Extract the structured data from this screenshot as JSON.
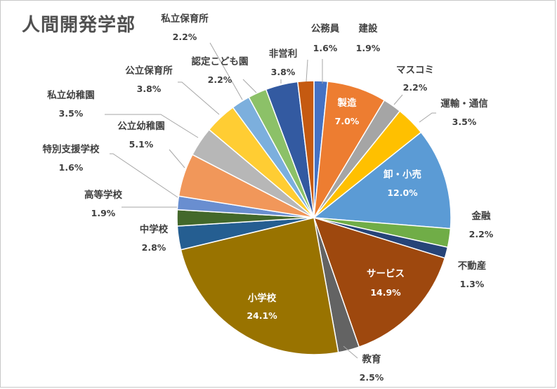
{
  "chart_data": {
    "type": "pie",
    "title": "人間開発学部",
    "start_angle_deg": 0,
    "direction": "clockwise",
    "slices": [
      {
        "label": "公務員",
        "value": 1.6,
        "display": "1.6%",
        "color": "#4472c4",
        "label_inside": false
      },
      {
        "label": "製造",
        "value": 7.0,
        "display": "7.0%",
        "color": "#ed7d31",
        "label_inside": true
      },
      {
        "label": "マスコミ",
        "value": 2.2,
        "display": "2.2%",
        "color": "#a5a5a5",
        "label_inside": false
      },
      {
        "label": "運輸・通信",
        "value": 3.5,
        "display": "3.5%",
        "color": "#ffc000",
        "label_inside": false
      },
      {
        "label": "卸・小売",
        "value": 12.0,
        "display": "12.0%",
        "color": "#5b9bd5",
        "label_inside": true
      },
      {
        "label": "金融",
        "value": 2.2,
        "display": "2.2%",
        "color": "#70ad47",
        "label_inside": false
      },
      {
        "label": "不動産",
        "value": 1.3,
        "display": "1.3%",
        "color": "#264478",
        "label_inside": false
      },
      {
        "label": "サービス",
        "value": 14.9,
        "display": "14.9%",
        "color": "#9e480e",
        "label_inside": true
      },
      {
        "label": "教育",
        "value": 2.5,
        "display": "2.5%",
        "color": "#636363",
        "label_inside": false
      },
      {
        "label": "小学校",
        "value": 24.1,
        "display": "24.1%",
        "color": "#997300",
        "label_inside": true
      },
      {
        "label": "中学校",
        "value": 2.8,
        "display": "2.8%",
        "color": "#255e91",
        "label_inside": false
      },
      {
        "label": "高等学校",
        "value": 1.9,
        "display": "1.9%",
        "color": "#43682b",
        "label_inside": false
      },
      {
        "label": "特別支援学校",
        "value": 1.6,
        "display": "1.6%",
        "color": "#698ed0",
        "label_inside": false
      },
      {
        "label": "公立幼稚園",
        "value": 5.1,
        "display": "5.1%",
        "color": "#f1975a",
        "label_inside": false
      },
      {
        "label": "私立幼稚園",
        "value": 3.5,
        "display": "3.5%",
        "color": "#b7b7b7",
        "label_inside": false
      },
      {
        "label": "公立保育所",
        "value": 3.8,
        "display": "3.8%",
        "color": "#ffcd33",
        "label_inside": false
      },
      {
        "label": "私立保育所",
        "value": 2.2,
        "display": "2.2%",
        "color": "#7cafdd",
        "label_inside": false
      },
      {
        "label": "認定こども園",
        "value": 2.2,
        "display": "2.2%",
        "color": "#8cc168",
        "label_inside": false
      },
      {
        "label": "非営利",
        "value": 3.8,
        "display": "3.8%",
        "color": "#335aa1",
        "label_inside": false
      },
      {
        "label": "建設",
        "value": 1.9,
        "display": "1.9%",
        "color": "#c55a11",
        "label_inside": false
      }
    ],
    "legend": "none"
  }
}
